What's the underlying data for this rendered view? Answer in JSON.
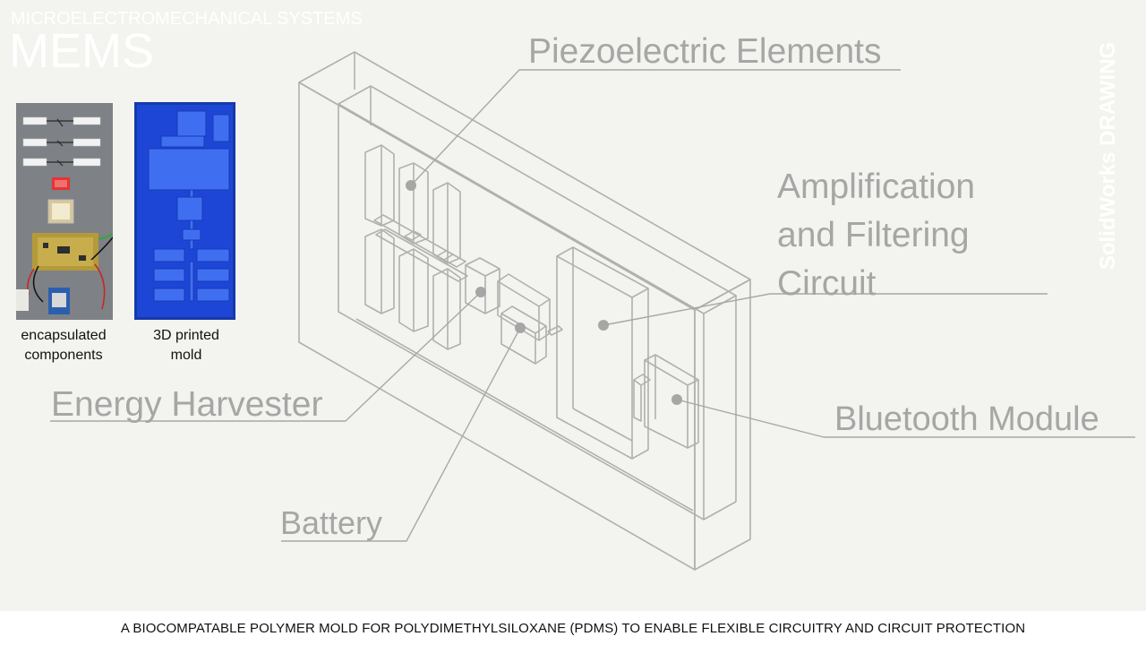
{
  "header": {
    "subtitle": "MICROELECTROMECHANICAL SYSTEMS",
    "title": "MEMS"
  },
  "side_label": "SolidWorks DRAWING",
  "photos": [
    {
      "label_line1": "encapsulated",
      "label_line2": "components"
    },
    {
      "label_line1": "3D printed",
      "label_line2": "mold"
    }
  ],
  "callouts": {
    "piezo": "Piezoelectric Elements",
    "amp_line1": "Amplification",
    "amp_line2": "and Filtering",
    "amp_line3": "Circuit",
    "energy": "Energy Harvester",
    "battery": "Battery",
    "bluetooth": "Bluetooth Module"
  },
  "footer": {
    "caption": "A BIOCOMPATABLE POLYMER MOLD FOR POLYDIMETHYLSILOXANE (PDMS) TO ENABLE FLEXIBLE CIRCUITRY AND CIRCUIT PROTECTION"
  },
  "colors": {
    "background": "#f3f3ef",
    "line": "#a6a6a6",
    "mold_blue": "#1f49d8",
    "footer_bg": "#ffffff"
  }
}
